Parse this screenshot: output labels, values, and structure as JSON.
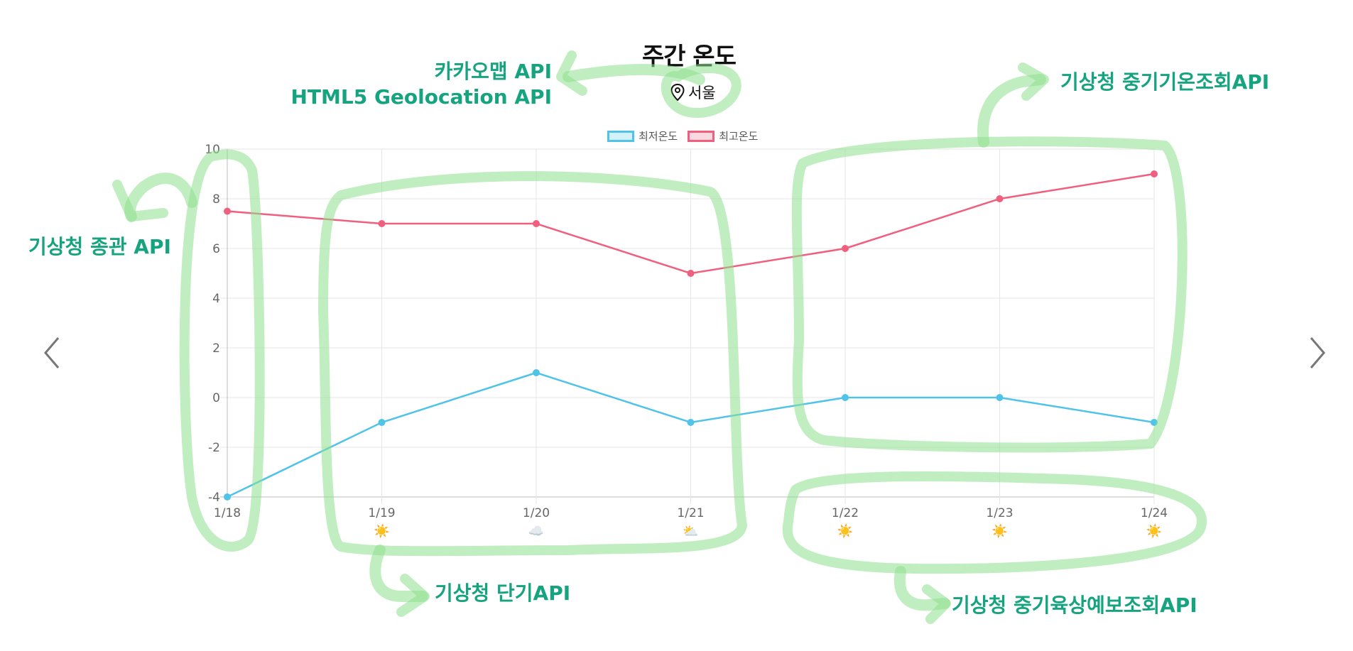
{
  "chart_data": {
    "type": "line",
    "title": "주간 온도",
    "location": "서울",
    "categories": [
      "1/18",
      "1/19",
      "1/20",
      "1/21",
      "1/22",
      "1/23",
      "1/24"
    ],
    "weather_icons": [
      "",
      "☀️",
      "☁️",
      "⛅",
      "☀️",
      "☀️",
      "☀️"
    ],
    "series": [
      {
        "name": "최저온도",
        "color": "#4fc3e8",
        "fill": "#d4f0fa",
        "values": [
          -4,
          -1,
          1,
          -1,
          0,
          0,
          -1
        ]
      },
      {
        "name": "최고온도",
        "color": "#f0607e",
        "fill": "#fbd9e0",
        "values": [
          7.5,
          7,
          7,
          5,
          6,
          8,
          9
        ]
      }
    ],
    "y_ticks": [
      10,
      8,
      6,
      4,
      2,
      0,
      -2,
      -4
    ],
    "ylim": [
      -4,
      10
    ],
    "grid": true,
    "legend": "top-center"
  },
  "annotations": {
    "location_api_line1": "카카오맵 API",
    "location_api_line2": "HTML5 Geolocation API",
    "current_api": "기상청 종관 API",
    "short_term_api": "기상청 단기API",
    "mid_temp_api": "기상청 중기기온조회API",
    "mid_land_api": "기상청 중기육상예보조회API"
  },
  "nav": {
    "prev_icon": "chevron-left-icon",
    "next_icon": "chevron-right-icon"
  },
  "colors": {
    "annotation": "#16a37f",
    "highlight": "#8ee08e"
  }
}
